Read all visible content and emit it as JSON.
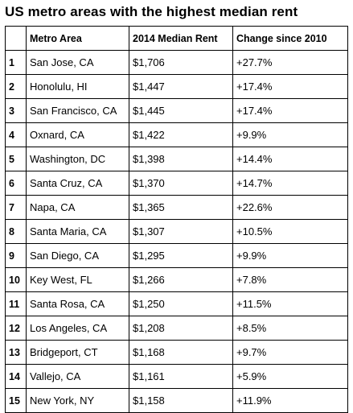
{
  "title": "US metro areas with the highest median rent",
  "chart_data": {
    "type": "table",
    "title": "US metro areas with the highest median rent",
    "columns": [
      "",
      "Metro Area",
      "2014 Median Rent",
      "Change since 2010"
    ],
    "rows": [
      [
        "1",
        "San Jose, CA",
        "$1,706",
        "+27.7%"
      ],
      [
        "2",
        "Honolulu, HI",
        "$1,447",
        "+17.4%"
      ],
      [
        "3",
        "San Francisco, CA",
        "$1,445",
        "+17.4%"
      ],
      [
        "4",
        "Oxnard, CA",
        "$1,422",
        "+9.9%"
      ],
      [
        "5",
        "Washington, DC",
        "$1,398",
        "+14.4%"
      ],
      [
        "6",
        "Santa Cruz, CA",
        "$1,370",
        "+14.7%"
      ],
      [
        "7",
        "Napa, CA",
        "$1,365",
        "+22.6%"
      ],
      [
        "8",
        "Santa Maria, CA",
        "$1,307",
        "+10.5%"
      ],
      [
        "9",
        "San Diego, CA",
        "$1,295",
        "+9.9%"
      ],
      [
        "10",
        "Key West, FL",
        "$1,266",
        "+7.8%"
      ],
      [
        "11",
        "Santa Rosa, CA",
        "$1,250",
        "+11.5%"
      ],
      [
        "12",
        "Los Angeles, CA",
        "$1,208",
        "+8.5%"
      ],
      [
        "13",
        "Bridgeport, CT",
        "$1,168",
        "+9.7%"
      ],
      [
        "14",
        "Vallejo, CA",
        "$1,161",
        "+5.9%"
      ],
      [
        "15",
        "New York, NY",
        "$1,158",
        "+11.9%"
      ]
    ]
  }
}
